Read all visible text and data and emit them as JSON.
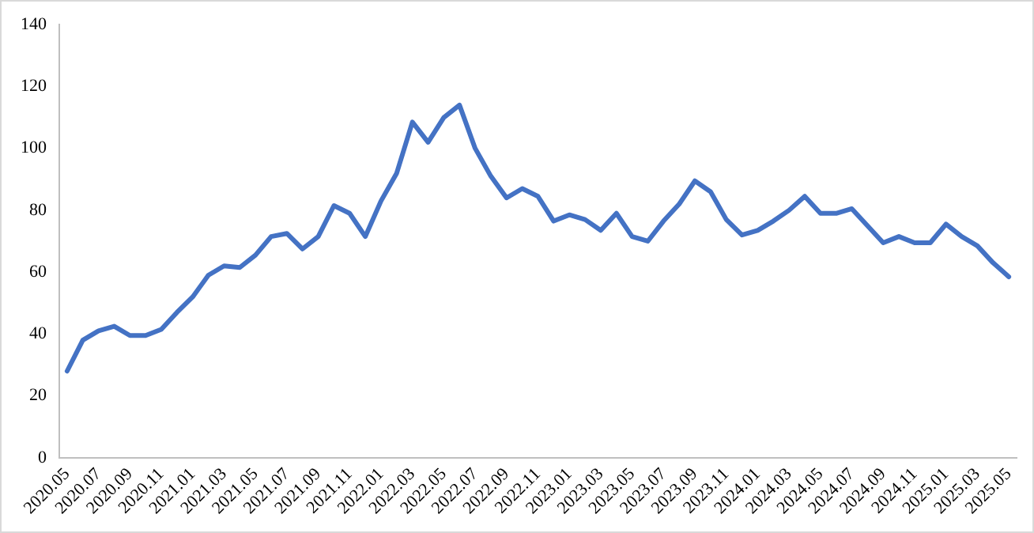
{
  "chart_data": {
    "type": "line",
    "categories": [
      "2020.05",
      null,
      "2020.07",
      null,
      "2020.09",
      null,
      "2020.11",
      null,
      "2021.01",
      null,
      "2021.03",
      null,
      "2021.05",
      null,
      "2021.07",
      null,
      "2021.09",
      null,
      "2021.11",
      null,
      "2022.01",
      null,
      "2022.03",
      null,
      "2022.05",
      null,
      "2022.07",
      null,
      "2022.09",
      null,
      "2022.11",
      null,
      "2023.01",
      null,
      "2023.03",
      null,
      "2023.05",
      null,
      "2023.07",
      null,
      "2023.09",
      null,
      "2023.11",
      null,
      "2024.01",
      null,
      "2024.03",
      null,
      "2024.05",
      null,
      "2024.07",
      null,
      "2024.09",
      null,
      "2024.11",
      null,
      "2025.01",
      null,
      "2025.03",
      null,
      "2025.05"
    ],
    "series": [
      {
        "color": "#4472c4",
        "values": [
          28,
          38,
          41,
          42.5,
          39.5,
          39.5,
          41.5,
          47,
          52,
          59,
          62,
          61.5,
          65.5,
          71.5,
          72.5,
          67.5,
          71.5,
          81.5,
          79,
          71.5,
          83,
          92,
          108.5,
          102,
          110,
          114,
          100,
          91,
          84,
          87,
          84.5,
          76.5,
          78.5,
          77,
          73.5,
          79,
          71.5,
          70,
          76.5,
          82,
          89.5,
          86,
          77,
          72,
          73.5,
          76.5,
          80,
          84.5,
          79,
          79,
          80.5,
          75,
          69.5,
          71.5,
          69.5,
          69.5,
          75.5,
          71.5,
          68.5,
          63,
          58.5
        ]
      }
    ],
    "ylim": [
      0,
      140
    ],
    "yticks": [
      0,
      20,
      40,
      60,
      80,
      100,
      120,
      140
    ],
    "grid": false,
    "legend": false,
    "marker": "none",
    "line_style": "solid"
  }
}
